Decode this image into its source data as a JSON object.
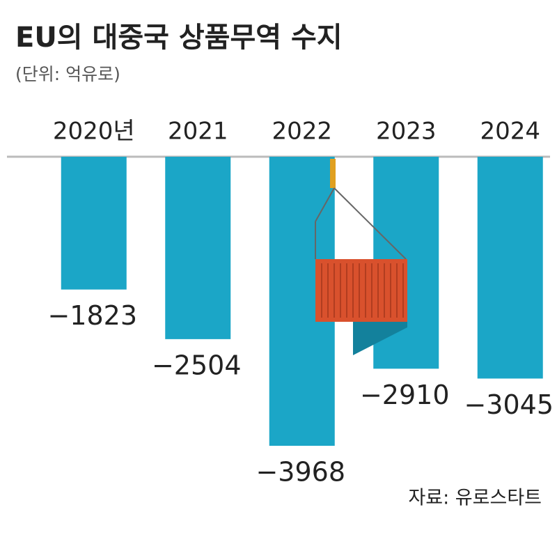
{
  "chart_data": {
    "type": "bar",
    "title": "EU의 대중국 상품무역 수지",
    "subtitle": "(단위: 억유로)",
    "source": "자료: 유로스타트",
    "categories": [
      "2020년",
      "2021",
      "2022",
      "2023",
      "2024"
    ],
    "values": [
      -1823,
      -2504,
      -3968,
      -2910,
      -3045
    ],
    "value_labels": [
      "−1823",
      "−2504",
      "−3968",
      "−2910",
      "−3045"
    ],
    "color": "#1ba6c7"
  }
}
